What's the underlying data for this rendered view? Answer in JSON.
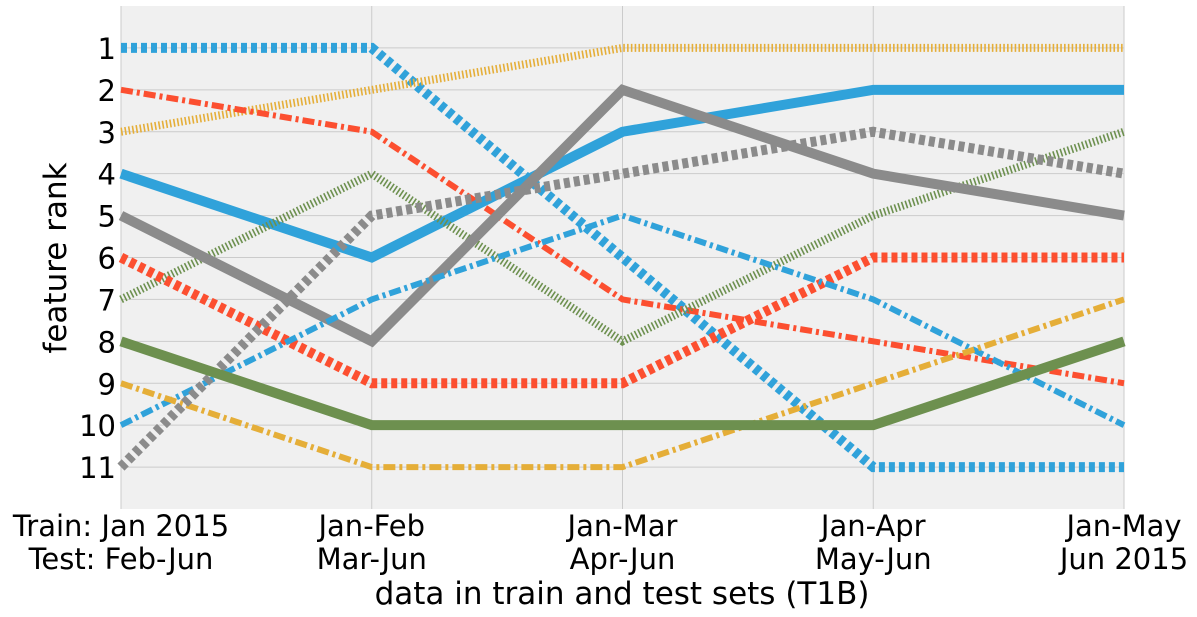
{
  "chart_data": {
    "type": "line",
    "title": "",
    "xlabel": "data in train and test sets (T1B)",
    "ylabel": "feature rank",
    "x_categories": [
      [
        "Train: Jan 2015",
        "Test: Feb-Jun"
      ],
      [
        "Jan-Feb",
        "Mar-Jun"
      ],
      [
        "Jan-Mar",
        "Apr-Jun"
      ],
      [
        "Jan-Apr",
        "May-Jun"
      ],
      [
        "Jan-May",
        "Jun 2015"
      ]
    ],
    "y_ticks": [
      1,
      2,
      3,
      4,
      5,
      6,
      7,
      8,
      9,
      10,
      11
    ],
    "ylim": [
      12,
      0
    ],
    "y_inverted": true,
    "grid": true,
    "series": [
      {
        "color": "#30a2da",
        "style": "dotted-thick",
        "values": [
          1,
          1,
          6,
          11,
          11
        ]
      },
      {
        "color": "#e5ae38",
        "style": "hatched",
        "values": [
          3,
          2,
          1,
          1,
          1
        ]
      },
      {
        "color": "#fc4f30",
        "style": "dashdot",
        "values": [
          2,
          3,
          7,
          8,
          9
        ]
      },
      {
        "color": "#30a2da",
        "style": "solid",
        "values": [
          4,
          6,
          3,
          2,
          2
        ]
      },
      {
        "color": "#6d904f",
        "style": "hatched",
        "values": [
          7,
          4,
          8,
          5,
          3
        ]
      },
      {
        "color": "#8b8b8b",
        "style": "solid",
        "values": [
          5,
          8,
          2,
          4,
          5
        ]
      },
      {
        "color": "#fc4f30",
        "style": "dotted-thick",
        "values": [
          6,
          9,
          9,
          6,
          6
        ]
      },
      {
        "color": "#30a2da",
        "style": "dashdot",
        "values": [
          10,
          7,
          5,
          7,
          10
        ]
      },
      {
        "color": "#e5ae38",
        "style": "dashdot",
        "values": [
          9,
          11,
          11,
          9,
          7
        ]
      },
      {
        "color": "#8b8b8b",
        "style": "dotted-thick",
        "values": [
          11,
          5,
          4,
          3,
          4
        ]
      },
      {
        "color": "#6d904f",
        "style": "solid",
        "values": [
          8,
          10,
          10,
          10,
          8
        ]
      }
    ]
  }
}
